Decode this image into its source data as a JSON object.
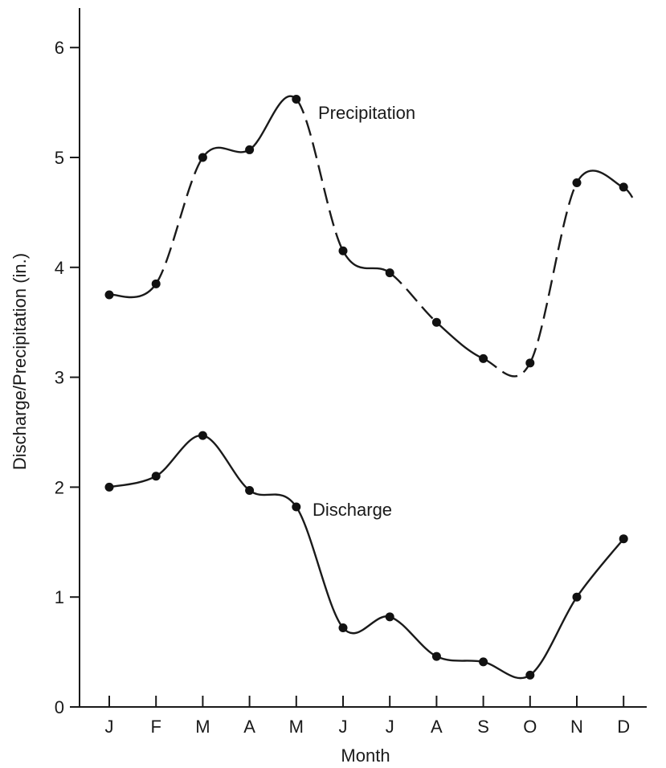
{
  "chart_data": {
    "type": "line",
    "title": "",
    "xlabel": "Month",
    "ylabel": "Discharge/Precipitation (in.)",
    "categories": [
      "J",
      "F",
      "M",
      "A",
      "M",
      "J",
      "J",
      "A",
      "S",
      "O",
      "N",
      "D"
    ],
    "ylim": [
      0,
      6.4
    ],
    "yticks": [
      "0",
      "1",
      "2",
      "3",
      "4",
      "5",
      "6"
    ],
    "grid": false,
    "legend": "none",
    "series": [
      {
        "name": "Precipitation",
        "values": [
          3.75,
          3.85,
          5.0,
          5.07,
          5.53,
          4.15,
          3.95,
          3.5,
          3.17,
          3.13,
          4.77,
          4.73
        ],
        "style": "solid with dashed segments"
      },
      {
        "name": "Discharge",
        "values": [
          2.0,
          2.1,
          2.47,
          1.97,
          1.82,
          0.72,
          0.82,
          0.46,
          0.41,
          0.29,
          1.0,
          1.53
        ],
        "style": "solid"
      }
    ]
  }
}
